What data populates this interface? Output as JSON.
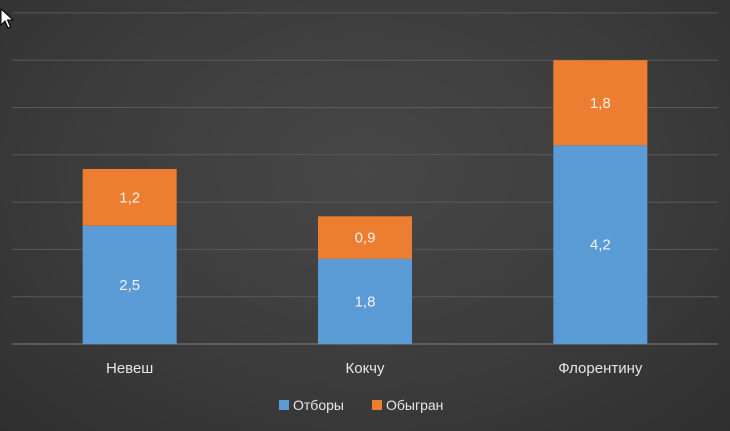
{
  "chart_data": {
    "type": "bar",
    "stacked": true,
    "categories": [
      "Невеш",
      "Кокчу",
      "Флорентину"
    ],
    "series": [
      {
        "name": "Отборы",
        "values": [
          2.5,
          1.8,
          4.2
        ],
        "color": "#5b9bd5"
      },
      {
        "name": "Обыгран",
        "values": [
          1.2,
          0.9,
          1.8
        ],
        "color": "#ed7d31"
      }
    ],
    "value_labels": [
      [
        "2,5",
        "1,8",
        "4,2"
      ],
      [
        "1,2",
        "0,9",
        "1,8"
      ]
    ],
    "ylim": [
      0,
      7
    ],
    "grid": true,
    "legend_position": "bottom"
  },
  "colors": {
    "gridline": "#595959",
    "axis": "#7f7f7f"
  },
  "icons": {
    "cursor": "mouse-pointer-icon"
  }
}
